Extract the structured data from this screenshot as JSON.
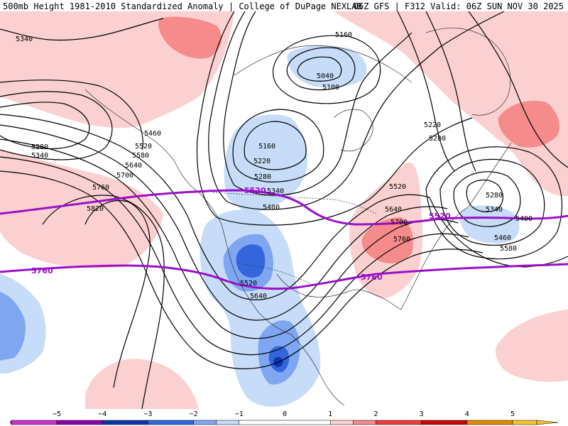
{
  "header": {
    "title_left": "500mb Height 1981-2010 Standardized Anomaly | College of DuPage NEXLAB",
    "title_right": "06Z GFS | F312 Valid: 06Z SUN NOV 30 2025"
  },
  "colors": {
    "neg5": "#cc33cc",
    "neg4": "#8800aa",
    "neg3": "#1133aa",
    "neg2": "#3366dd",
    "neg1": "#7fa6f0",
    "neg05": "#c6dcf8",
    "zero": "#ffffff",
    "pos05": "#fbd0d0",
    "pos1": "#f58b8b",
    "pos2": "#ee3b3b",
    "pos3": "#c90000",
    "pos4": "#e08a00",
    "pos5": "#f4c430",
    "contour": "#000000",
    "highlight": "#9a10c9"
  },
  "colorbar": {
    "ticks": [
      "−5",
      "−4",
      "−3",
      "−2",
      "−1",
      "0",
      "1",
      "2",
      "3",
      "4",
      "5"
    ]
  },
  "contour_labels": [
    {
      "id": "c5340-nw",
      "text": "5340"
    },
    {
      "id": "c5160-top",
      "text": "5160"
    },
    {
      "id": "c5040",
      "text": "5040"
    },
    {
      "id": "c5100",
      "text": "5100"
    },
    {
      "id": "c5460-w",
      "text": "5460"
    },
    {
      "id": "c5280-w",
      "text": "5280"
    },
    {
      "id": "c5340-w",
      "text": "5340"
    },
    {
      "id": "c5520-w",
      "text": "5520"
    },
    {
      "id": "c5580-w",
      "text": "5580"
    },
    {
      "id": "c5640-w",
      "text": "5640"
    },
    {
      "id": "c5700-w",
      "text": "5700"
    },
    {
      "id": "c5760-w",
      "text": "5760"
    },
    {
      "id": "c5820-w",
      "text": "5820"
    },
    {
      "id": "c5160-c",
      "text": "5160"
    },
    {
      "id": "c5220-c",
      "text": "5220"
    },
    {
      "id": "c5280-c",
      "text": "5280"
    },
    {
      "id": "c5340-c",
      "text": "5340"
    },
    {
      "id": "c5400-c",
      "text": "5400"
    },
    {
      "id": "c5520-sw",
      "text": "5520"
    },
    {
      "id": "c5640-sw",
      "text": "5640"
    },
    {
      "id": "c5220-e",
      "text": "5220"
    },
    {
      "id": "c5280-e",
      "text": "5280"
    },
    {
      "id": "c5520-e",
      "text": "5520"
    },
    {
      "id": "c5640-e",
      "text": "5640"
    },
    {
      "id": "c5700-e",
      "text": "5700"
    },
    {
      "id": "c5760-e",
      "text": "5760"
    },
    {
      "id": "c5280-ne",
      "text": "5280"
    },
    {
      "id": "c5340-ne",
      "text": "5340"
    },
    {
      "id": "c5400-ne",
      "text": "5400"
    },
    {
      "id": "c5460-ne",
      "text": "5460"
    },
    {
      "id": "c5580-ne",
      "text": "5580"
    }
  ],
  "highlight_labels": [
    {
      "id": "h5520-c",
      "text": "5520"
    },
    {
      "id": "h5520-e",
      "text": "5520"
    },
    {
      "id": "h5760-w",
      "text": "5760"
    },
    {
      "id": "h5760-e",
      "text": "5760"
    }
  ]
}
